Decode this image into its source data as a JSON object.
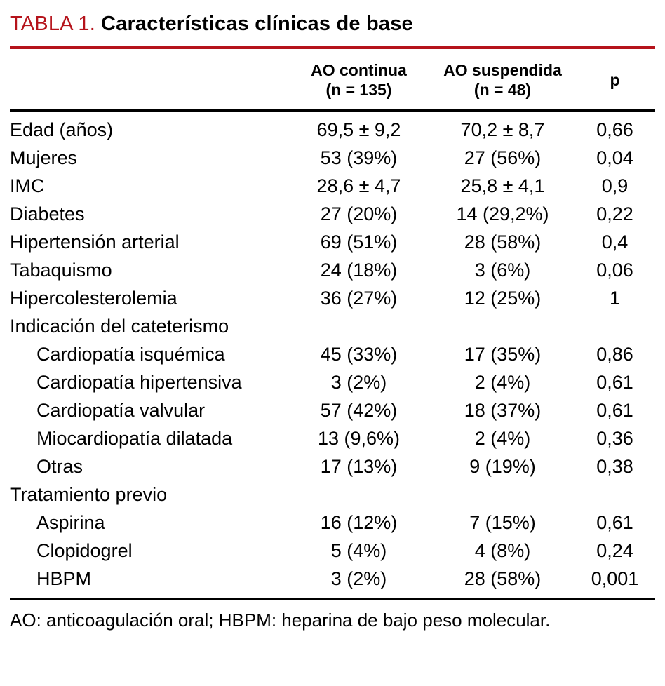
{
  "title": {
    "label": "TABLA 1.",
    "text": "Características clínicas de base"
  },
  "colors": {
    "accent_red": "#b5131b",
    "text": "#000000",
    "background": "#ffffff"
  },
  "table": {
    "columns": [
      {
        "line1": "AO continua",
        "line2": "(n = 135)"
      },
      {
        "line1": "AO suspendida",
        "line2": "(n = 48)"
      },
      {
        "line1": "p",
        "line2": ""
      }
    ],
    "rows": [
      {
        "label": "Edad (años)",
        "indent": false,
        "group": false,
        "c1": "69,5 ± 9,2",
        "c2": "70,2 ± 8,7",
        "p": "0,66"
      },
      {
        "label": "Mujeres",
        "indent": false,
        "group": false,
        "c1": "53 (39%)",
        "c2": "27 (56%)",
        "p": "0,04"
      },
      {
        "label": "IMC",
        "indent": false,
        "group": false,
        "c1": "28,6 ± 4,7",
        "c2": "25,8 ± 4,1",
        "p": "0,9"
      },
      {
        "label": "Diabetes",
        "indent": false,
        "group": false,
        "c1": "27 (20%)",
        "c2": "14 (29,2%)",
        "p": "0,22"
      },
      {
        "label": "Hipertensión arterial",
        "indent": false,
        "group": false,
        "c1": "69 (51%)",
        "c2": "28 (58%)",
        "p": "0,4"
      },
      {
        "label": "Tabaquismo",
        "indent": false,
        "group": false,
        "c1": "24 (18%)",
        "c2": "3 (6%)",
        "p": "0,06"
      },
      {
        "label": "Hipercolesterolemia",
        "indent": false,
        "group": false,
        "c1": "36 (27%)",
        "c2": "12 (25%)",
        "p": "1"
      },
      {
        "label": "Indicación del cateterismo",
        "indent": false,
        "group": true,
        "c1": "",
        "c2": "",
        "p": ""
      },
      {
        "label": "Cardiopatía isquémica",
        "indent": true,
        "group": false,
        "c1": "45 (33%)",
        "c2": "17 (35%)",
        "p": "0,86"
      },
      {
        "label": "Cardiopatía hipertensiva",
        "indent": true,
        "group": false,
        "c1": "3 (2%)",
        "c2": "2 (4%)",
        "p": "0,61"
      },
      {
        "label": "Cardiopatía valvular",
        "indent": true,
        "group": false,
        "c1": "57 (42%)",
        "c2": "18 (37%)",
        "p": "0,61"
      },
      {
        "label": "Miocardiopatía dilatada",
        "indent": true,
        "group": false,
        "c1": "13 (9,6%)",
        "c2": "2 (4%)",
        "p": "0,36"
      },
      {
        "label": "Otras",
        "indent": true,
        "group": false,
        "c1": "17 (13%)",
        "c2": "9 (19%)",
        "p": "0,38"
      },
      {
        "label": "Tratamiento previo",
        "indent": false,
        "group": true,
        "c1": "",
        "c2": "",
        "p": ""
      },
      {
        "label": "Aspirina",
        "indent": true,
        "group": false,
        "c1": "16 (12%)",
        "c2": "7 (15%)",
        "p": "0,61"
      },
      {
        "label": "Clopidogrel",
        "indent": true,
        "group": false,
        "c1": "5 (4%)",
        "c2": "4 (8%)",
        "p": "0,24"
      },
      {
        "label": "HBPM",
        "indent": true,
        "group": false,
        "c1": "3 (2%)",
        "c2": "28 (58%)",
        "p": "0,001"
      }
    ]
  },
  "footnote": "AO: anticoagulación oral; HBPM: heparina de bajo peso molecular."
}
